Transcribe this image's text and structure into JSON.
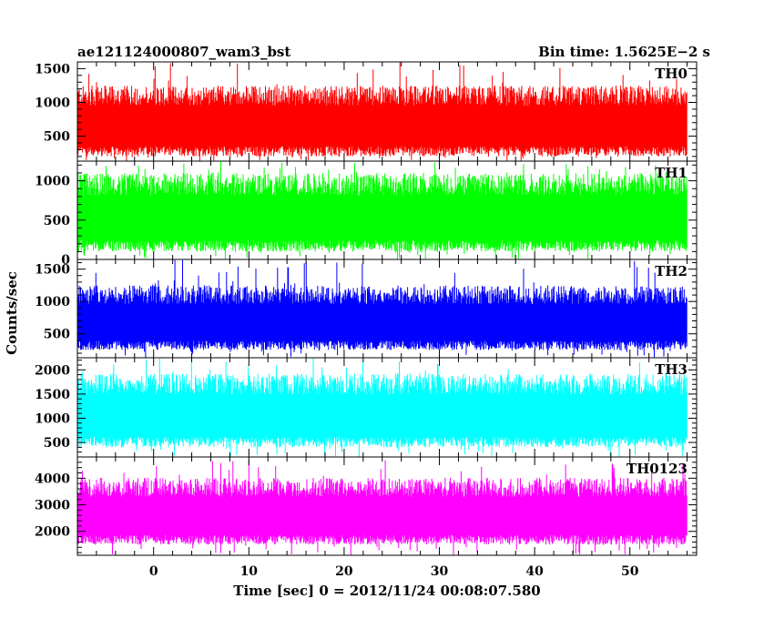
{
  "header": {
    "title": "ae121124000807_wam3_bst",
    "bin_time": "Bin time: 1.5625E−2 s"
  },
  "chart_data": {
    "type": "line",
    "title": "ae121124000807_wam3_bst",
    "xlabel": "Time [sec] 0 = 2012/11/24 00:08:07.580",
    "ylabel": "Counts/sec",
    "xlim": [
      -8,
      57
    ],
    "x_range": [
      -8,
      56
    ],
    "x_ticks": [
      0,
      10,
      20,
      30,
      40,
      50
    ],
    "grid": false,
    "panels": [
      {
        "name": "TH0",
        "color": "#ff0000",
        "ylim": [
          130,
          1600
        ],
        "y_ticks": [
          500,
          1000,
          1500
        ],
        "typical_min": 200,
        "typical_max": 1200,
        "peak_max": 1600
      },
      {
        "name": "TH1",
        "color": "#00ff00",
        "ylim": [
          0,
          1250
        ],
        "y_ticks": [
          0,
          500,
          1000
        ],
        "typical_min": 100,
        "typical_max": 1050,
        "peak_max": 1250
      },
      {
        "name": "TH2",
        "color": "#0000ff",
        "ylim": [
          130,
          1650
        ],
        "y_ticks": [
          500,
          1000,
          1500
        ],
        "typical_min": 250,
        "typical_max": 1200,
        "peak_max": 1650
      },
      {
        "name": "TH3",
        "color": "#00ffff",
        "ylim": [
          200,
          2250
        ],
        "y_ticks": [
          500,
          1000,
          1500,
          2000
        ],
        "typical_min": 400,
        "typical_max": 1850,
        "peak_max": 2250
      },
      {
        "name": "TH0123",
        "color": "#ff00ff",
        "ylim": [
          1100,
          4800
        ],
        "y_ticks": [
          2000,
          3000,
          4000
        ],
        "typical_min": 1500,
        "typical_max": 3900,
        "peak_max": 4700
      }
    ]
  }
}
